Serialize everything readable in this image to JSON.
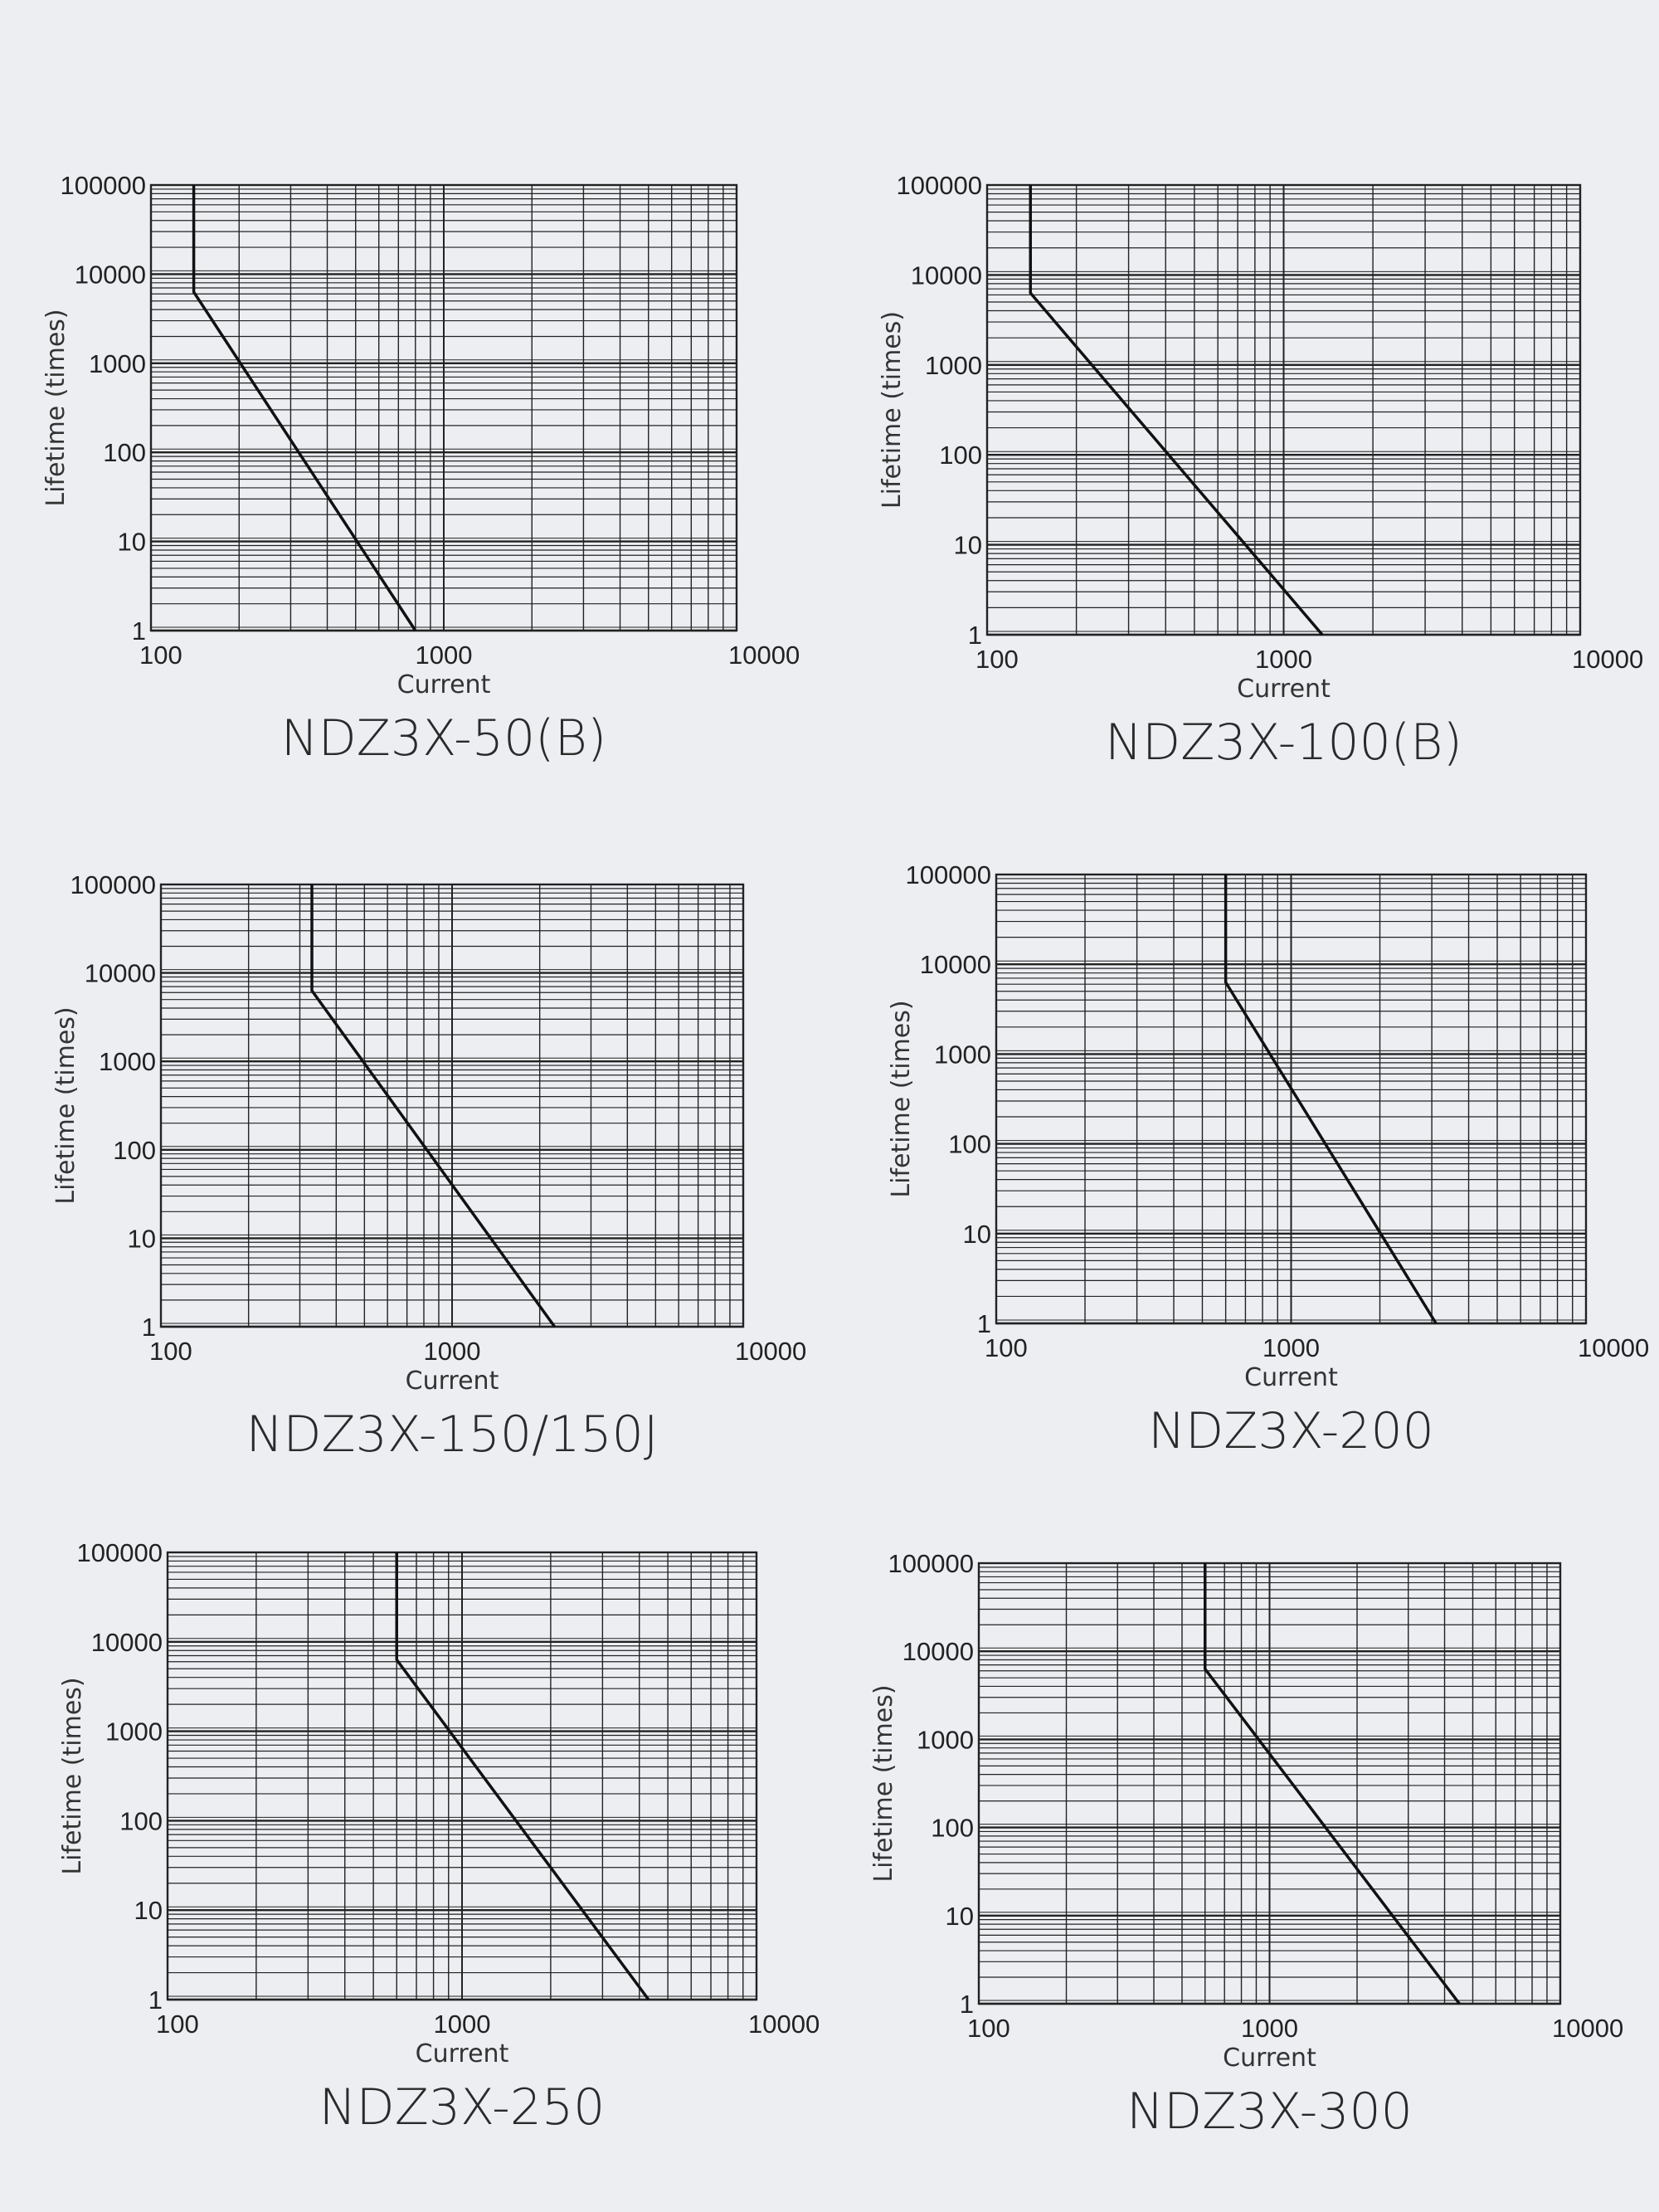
{
  "style": {
    "background": "#eceef2",
    "grid_color": "#222222",
    "line_color": "#111111"
  },
  "chart_data": [
    {
      "type": "line",
      "title": "NDZ3X-50(B)",
      "xlabel": "Current",
      "ylabel": "Lifetime (times)",
      "xscale": "log",
      "yscale": "log",
      "xlim": [
        100,
        10000
      ],
      "ylim": [
        1,
        100000
      ],
      "grid": true,
      "xticks": [
        "100",
        "1000",
        "10000"
      ],
      "yticks": [
        "1",
        "10",
        "100",
        "1000",
        "10000",
        "100000"
      ],
      "series": [
        {
          "x": [
            140,
            140,
            800
          ],
          "y": [
            100000,
            6300,
            1
          ]
        }
      ]
    },
    {
      "type": "line",
      "title": "NDZ3X-100(B)",
      "xlabel": "Current",
      "ylabel": "Lifetime (times)",
      "xscale": "log",
      "yscale": "log",
      "xlim": [
        100,
        10000
      ],
      "ylim": [
        1,
        100000
      ],
      "grid": true,
      "xticks": [
        "100",
        "1000",
        "10000"
      ],
      "yticks": [
        "1",
        "10",
        "100",
        "1000",
        "10000",
        "100000"
      ],
      "series": [
        {
          "x": [
            140,
            140,
            1350
          ],
          "y": [
            100000,
            6300,
            1
          ]
        }
      ]
    },
    {
      "type": "line",
      "title": "NDZ3X-150/150J",
      "xlabel": "Current",
      "ylabel": "Lifetime (times)",
      "xscale": "log",
      "yscale": "log",
      "xlim": [
        100,
        10000
      ],
      "ylim": [
        1,
        100000
      ],
      "grid": true,
      "xticks": [
        "100",
        "1000",
        "10000"
      ],
      "yticks": [
        "1",
        "10",
        "100",
        "1000",
        "10000",
        "100000"
      ],
      "series": [
        {
          "x": [
            330,
            330,
            2250
          ],
          "y": [
            100000,
            6300,
            1
          ]
        }
      ]
    },
    {
      "type": "line",
      "title": "NDZ3X-200",
      "xlabel": "Current",
      "ylabel": "Lifetime (times)",
      "xscale": "log",
      "yscale": "log",
      "xlim": [
        100,
        10000
      ],
      "ylim": [
        1,
        100000
      ],
      "grid": true,
      "xticks": [
        "100",
        "1000",
        "10000"
      ],
      "yticks": [
        "1",
        "10",
        "100",
        "1000",
        "10000",
        "100000"
      ],
      "series": [
        {
          "x": [
            600,
            600,
            3100
          ],
          "y": [
            100000,
            6300,
            1
          ]
        }
      ]
    },
    {
      "type": "line",
      "title": "NDZ3X-250",
      "xlabel": "Current",
      "ylabel": "Lifetime (times)",
      "xscale": "log",
      "yscale": "log",
      "xlim": [
        100,
        10000
      ],
      "ylim": [
        1,
        100000
      ],
      "grid": true,
      "xticks": [
        "100",
        "1000",
        "10000"
      ],
      "yticks": [
        "1",
        "10",
        "100",
        "1000",
        "10000",
        "100000"
      ],
      "series": [
        {
          "x": [
            600,
            600,
            4300
          ],
          "y": [
            100000,
            6300,
            1
          ]
        }
      ]
    },
    {
      "type": "line",
      "title": "NDZ3X-300",
      "xlabel": "Current",
      "ylabel": "Lifetime (times)",
      "xscale": "log",
      "yscale": "log",
      "xlim": [
        100,
        10000
      ],
      "ylim": [
        1,
        100000
      ],
      "grid": true,
      "xticks": [
        "100",
        "1000",
        "10000"
      ],
      "yticks": [
        "1",
        "10",
        "100",
        "1000",
        "10000",
        "100000"
      ],
      "series": [
        {
          "x": [
            600,
            600,
            4500
          ],
          "y": [
            100000,
            6300,
            1
          ]
        }
      ]
    }
  ]
}
